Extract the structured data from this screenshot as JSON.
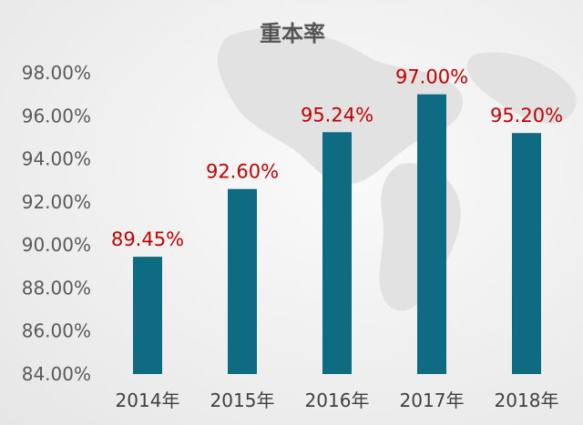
{
  "chart_data": {
    "type": "bar",
    "title": "重本率",
    "categories": [
      "2014年",
      "2015年",
      "2016年",
      "2017年",
      "2018年"
    ],
    "values": [
      89.45,
      92.6,
      95.24,
      97.0,
      95.2
    ],
    "value_labels": [
      "89.45%",
      "92.60%",
      "95.24%",
      "97.00%",
      "95.20%"
    ],
    "yticks": [
      84,
      86,
      88,
      90,
      92,
      94,
      96,
      98
    ],
    "ytick_labels": [
      "84.00%",
      "86.00%",
      "88.00%",
      "90.00%",
      "92.00%",
      "94.00%",
      "96.00%",
      "98.00%"
    ],
    "ylim": [
      84,
      98
    ],
    "xlabel": "",
    "ylabel": "",
    "grid": false,
    "legend": "none",
    "bar_color": "#0f6b82",
    "label_color": "#c00000"
  }
}
